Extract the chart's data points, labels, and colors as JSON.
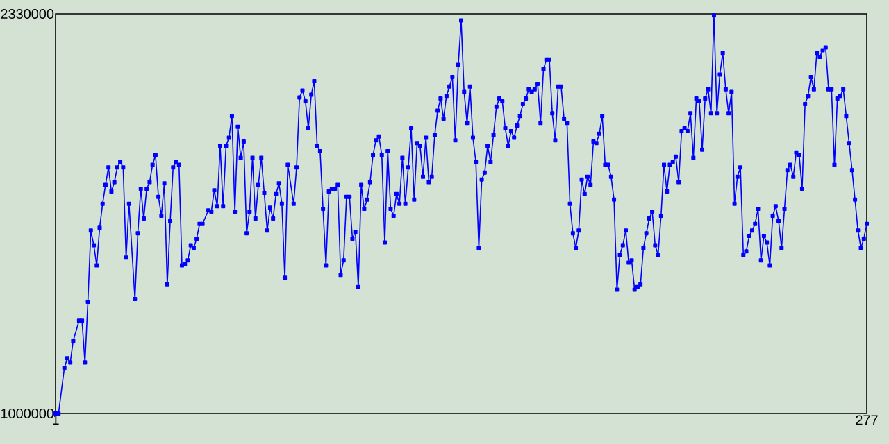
{
  "chart_data": {
    "type": "line",
    "marker": "square",
    "line_style": "solid",
    "xlim": [
      1,
      277
    ],
    "xticks": [
      1,
      277
    ],
    "ylim": [
      1000000,
      2330000
    ],
    "yticks": [
      1000000,
      2330000
    ],
    "x": [
      1,
      2,
      4,
      5,
      6,
      7,
      9,
      10,
      11,
      12,
      13,
      14,
      15,
      16,
      17,
      18,
      19,
      20,
      21,
      22,
      23,
      24,
      25,
      26,
      28,
      29,
      30,
      31,
      32,
      33,
      34,
      35,
      36,
      37,
      38,
      39,
      40,
      41,
      42,
      43,
      44,
      45,
      46,
      47,
      48,
      49,
      50,
      51,
      53,
      54,
      55,
      56,
      57,
      58,
      59,
      60,
      61,
      62,
      63,
      64,
      65,
      66,
      67,
      68,
      69,
      70,
      71,
      72,
      73,
      74,
      75,
      76,
      77,
      78,
      79,
      80,
      82,
      83,
      84,
      85,
      86,
      87,
      88,
      89,
      90,
      91,
      92,
      93,
      94,
      95,
      96,
      97,
      98,
      99,
      100,
      101,
      102,
      103,
      104,
      105,
      106,
      107,
      108,
      109,
      110,
      111,
      112,
      113,
      114,
      115,
      116,
      117,
      118,
      119,
      120,
      121,
      122,
      123,
      124,
      125,
      126,
      127,
      128,
      129,
      130,
      131,
      132,
      133,
      134,
      135,
      136,
      137,
      138,
      139,
      140,
      141,
      142,
      143,
      144,
      145,
      146,
      147,
      148,
      149,
      150,
      151,
      152,
      153,
      154,
      155,
      156,
      157,
      158,
      159,
      160,
      161,
      162,
      163,
      164,
      165,
      166,
      167,
      168,
      169,
      170,
      171,
      172,
      173,
      174,
      175,
      176,
      177,
      178,
      179,
      180,
      181,
      182,
      183,
      184,
      185,
      186,
      187,
      188,
      189,
      190,
      191,
      192,
      193,
      194,
      195,
      196,
      197,
      198,
      199,
      200,
      201,
      202,
      203,
      204,
      205,
      206,
      207,
      208,
      209,
      210,
      211,
      212,
      213,
      214,
      215,
      216,
      217,
      218,
      219,
      220,
      221,
      222,
      223,
      224,
      225,
      226,
      227,
      228,
      229,
      230,
      231,
      232,
      233,
      234,
      235,
      236,
      237,
      238,
      239,
      240,
      241,
      242,
      243,
      244,
      245,
      246,
      247,
      248,
      249,
      250,
      251,
      252,
      253,
      254,
      255,
      256,
      257,
      258,
      259,
      260,
      261,
      262,
      263,
      264,
      265,
      266,
      267,
      268,
      269,
      270,
      271,
      272,
      273,
      274,
      275,
      276,
      277
    ],
    "series": [
      {
        "color": "#0000ff",
        "values": [
          1000000,
          1000000,
          1152000,
          1184000,
          1170000,
          1242000,
          1309000,
          1309000,
          1170000,
          1372000,
          1609000,
          1560000,
          1493000,
          1618000,
          1698000,
          1761000,
          1819000,
          1739000,
          1770000,
          1819000,
          1837000,
          1819000,
          1519000,
          1698000,
          1381000,
          1600000,
          1748000,
          1649000,
          1748000,
          1770000,
          1828000,
          1860000,
          1721000,
          1658000,
          1766000,
          1430000,
          1640000,
          1819000,
          1837000,
          1828000,
          1493000,
          1497000,
          1510000,
          1560000,
          1551000,
          1582000,
          1631000,
          1631000,
          1676000,
          1672000,
          1743000,
          1690000,
          1891000,
          1690000,
          1891000,
          1918000,
          1990000,
          1672000,
          1954000,
          1851000,
          1905000,
          1600000,
          1672000,
          1851000,
          1649000,
          1761000,
          1851000,
          1734000,
          1609000,
          1685000,
          1649000,
          1730000,
          1766000,
          1698000,
          1452000,
          1828000,
          1698000,
          1819000,
          2052000,
          2075000,
          2039000,
          1949000,
          2061000,
          2106000,
          1891000,
          1873000,
          1681000,
          1493000,
          1739000,
          1748000,
          1748000,
          1761000,
          1461000,
          1510000,
          1721000,
          1721000,
          1582000,
          1605000,
          1421000,
          1761000,
          1681000,
          1712000,
          1770000,
          1860000,
          1909000,
          1922000,
          1860000,
          1569000,
          1873000,
          1681000,
          1658000,
          1730000,
          1698000,
          1851000,
          1698000,
          1819000,
          1949000,
          1712000,
          1900000,
          1891000,
          1788000,
          1918000,
          1770000,
          1788000,
          1927000,
          2008000,
          2048000,
          1981000,
          2057000,
          2088000,
          2120000,
          1909000,
          2160000,
          2308000,
          2070000,
          1967000,
          2088000,
          1918000,
          1837000,
          1551000,
          1779000,
          1802000,
          1891000,
          1837000,
          1927000,
          2021000,
          2048000,
          2039000,
          1949000,
          1891000,
          1940000,
          1918000,
          1958000,
          1990000,
          2030000,
          2048000,
          2079000,
          2070000,
          2079000,
          2097000,
          1967000,
          2146000,
          2178000,
          2178000,
          1999000,
          1909000,
          2088000,
          2088000,
          1981000,
          1967000,
          1698000,
          1600000,
          1551000,
          1609000,
          1779000,
          1730000,
          1788000,
          1761000,
          1905000,
          1900000,
          1931000,
          1990000,
          1828000,
          1828000,
          1788000,
          1712000,
          1412000,
          1528000,
          1560000,
          1609000,
          1502000,
          1510000,
          1412000,
          1421000,
          1430000,
          1551000,
          1600000,
          1649000,
          1672000,
          1560000,
          1528000,
          1658000,
          1828000,
          1739000,
          1828000,
          1837000,
          1855000,
          1770000,
          1940000,
          1949000,
          1940000,
          1999000,
          1851000,
          2048000,
          2039000,
          1878000,
          2048000,
          2079000,
          1999000,
          2325000,
          1999000,
          2128000,
          2200000,
          2079000,
          1999000,
          2070000,
          1698000,
          1788000,
          1819000,
          1528000,
          1540000,
          1591000,
          1609000,
          1631000,
          1681000,
          1510000,
          1591000,
          1569000,
          1493000,
          1658000,
          1690000,
          1640000,
          1551000,
          1681000,
          1810000,
          1828000,
          1788000,
          1869000,
          1860000,
          1748000,
          2030000,
          2057000,
          2120000,
          2079000,
          2200000,
          2187000,
          2209000,
          2218000,
          2079000,
          2079000,
          1828000,
          2048000,
          2057000,
          2079000,
          1990000,
          1900000,
          1810000,
          1712000,
          1609000,
          1551000,
          1582000,
          1631000
        ]
      }
    ]
  }
}
